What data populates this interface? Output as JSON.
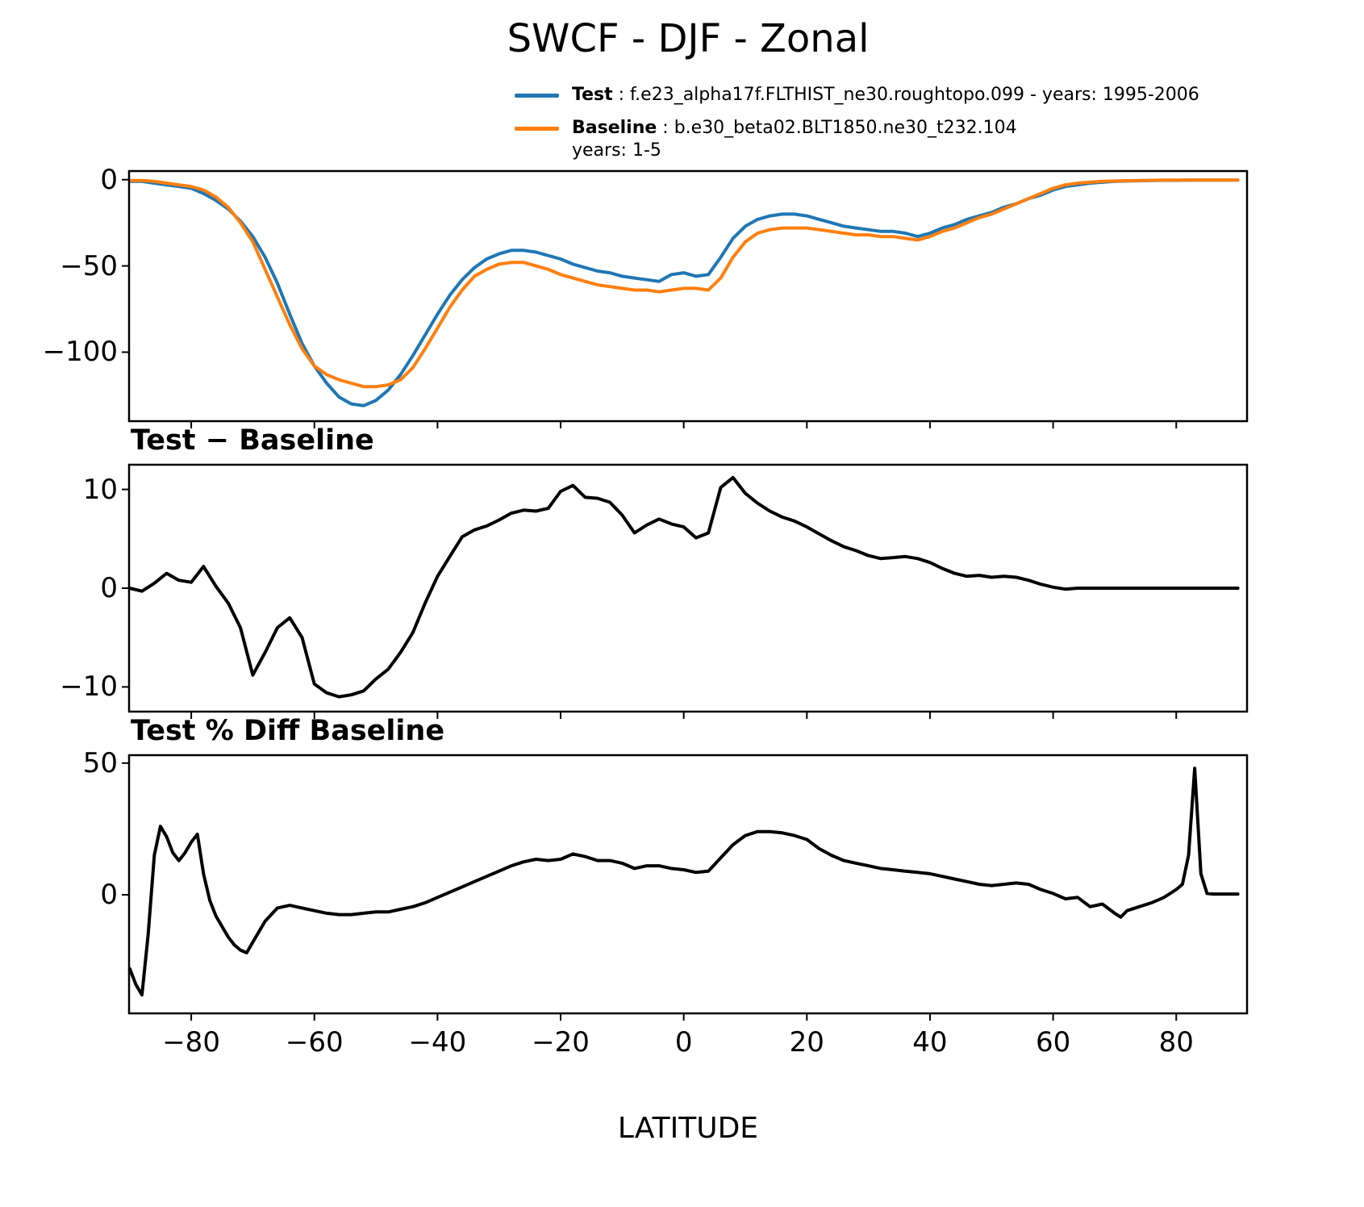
{
  "title": "SWCF - DJF - Zonal",
  "xlabel": "LATITUDE",
  "legend": {
    "test_label": "Test",
    "test_desc": " : f.e23_alpha17f.FLTHIST_ne30.roughtopo.099 - years: 1995-2006",
    "baseline_label": "Baseline",
    "baseline_desc": " : b.e30_beta02.BLT1850.ne30_t232.104",
    "baseline_years": "years: 1-5",
    "test_color": "#1f77b4",
    "baseline_color": "#ff7f0e"
  },
  "chart_data": [
    {
      "name": "zonal-mean",
      "type": "line",
      "title": "",
      "xlabel": "LATITUDE",
      "xlim": [
        -90.1,
        91.5
      ],
      "ylim": [
        -140,
        5
      ],
      "xticks": [
        -80,
        -60,
        -40,
        -20,
        0,
        20,
        40,
        60,
        80
      ],
      "yticks": [
        0,
        -50,
        -100
      ],
      "show_xtick_labels": false,
      "grid": false,
      "x": [
        -90,
        -88,
        -86,
        -84,
        -82,
        -80,
        -78,
        -76,
        -74,
        -72,
        -70,
        -68,
        -66,
        -64,
        -62,
        -60,
        -58,
        -56,
        -54,
        -52,
        -50,
        -48,
        -46,
        -44,
        -42,
        -40,
        -38,
        -36,
        -34,
        -32,
        -30,
        -28,
        -26,
        -24,
        -22,
        -20,
        -18,
        -16,
        -14,
        -12,
        -10,
        -8,
        -6,
        -4,
        -2,
        0,
        2,
        4,
        6,
        8,
        10,
        12,
        14,
        16,
        18,
        20,
        22,
        24,
        26,
        28,
        30,
        32,
        34,
        36,
        38,
        40,
        42,
        44,
        46,
        48,
        50,
        52,
        54,
        56,
        58,
        60,
        62,
        64,
        66,
        68,
        70,
        72,
        74,
        76,
        78,
        80,
        82,
        84,
        86,
        88,
        90
      ],
      "series": [
        {
          "name": "Test",
          "color": "#1f77b4",
          "width": 4,
          "values": [
            -1,
            -1,
            -2,
            -3,
            -4,
            -5,
            -8,
            -12,
            -17,
            -24,
            -33,
            -45,
            -60,
            -78,
            -95,
            -108,
            -118,
            -126,
            -130,
            -131,
            -128,
            -122,
            -113,
            -102,
            -90,
            -78,
            -67,
            -58,
            -51,
            -46,
            -43,
            -41,
            -41,
            -42,
            -44,
            -46,
            -49,
            -51,
            -53,
            -54,
            -56,
            -57,
            -58,
            -59,
            -55,
            -54,
            -56,
            -55,
            -45,
            -34,
            -27,
            -23,
            -21,
            -20,
            -20,
            -21,
            -23,
            -25,
            -27,
            -28,
            -29,
            -30,
            -30,
            -31,
            -33,
            -31,
            -28,
            -26,
            -23,
            -21,
            -19,
            -16,
            -14,
            -11,
            -9,
            -6,
            -4,
            -3,
            -2,
            -1.5,
            -1,
            -0.8,
            -0.6,
            -0.5,
            -0.4,
            -0.4,
            -0.3,
            -0.3,
            -0.3,
            -0.3,
            -0.3
          ]
        },
        {
          "name": "Baseline",
          "color": "#ff7f0e",
          "width": 4,
          "values": [
            -0.5,
            -0.5,
            -1,
            -2,
            -3,
            -4,
            -6,
            -10,
            -16,
            -25,
            -36,
            -52,
            -68,
            -84,
            -98,
            -108,
            -113,
            -116,
            -118,
            -120,
            -120,
            -119,
            -116,
            -109,
            -98,
            -86,
            -74,
            -64,
            -56,
            -52,
            -49,
            -48,
            -48,
            -50,
            -52,
            -55,
            -57,
            -59,
            -61,
            -62,
            -63,
            -64,
            -64,
            -65,
            -64,
            -63,
            -63,
            -64,
            -57,
            -45,
            -36,
            -31,
            -29,
            -28,
            -28,
            -28,
            -29,
            -30,
            -31,
            -32,
            -32,
            -33,
            -33,
            -34,
            -35,
            -33,
            -30,
            -28,
            -25,
            -22,
            -20,
            -17,
            -14,
            -11,
            -8,
            -5,
            -3,
            -2,
            -1.5,
            -1,
            -0.8,
            -0.6,
            -0.5,
            -0.4,
            -0.3,
            -0.3,
            -0.3,
            -0.2,
            -0.2,
            -0.2,
            -0.2
          ]
        }
      ]
    },
    {
      "name": "difference",
      "type": "line",
      "title": "Test − Baseline",
      "xlim": [
        -90.1,
        91.5
      ],
      "ylim": [
        -12.5,
        12.5
      ],
      "xticks": [
        -80,
        -60,
        -40,
        -20,
        0,
        20,
        40,
        60,
        80
      ],
      "yticks": [
        10,
        0,
        -10
      ],
      "show_xtick_labels": false,
      "grid": false,
      "x": [
        -90,
        -88,
        -86,
        -84,
        -82,
        -80,
        -78,
        -76,
        -74,
        -72,
        -70,
        -68,
        -66,
        -64,
        -62,
        -60,
        -58,
        -56,
        -54,
        -52,
        -50,
        -48,
        -46,
        -44,
        -42,
        -40,
        -38,
        -36,
        -34,
        -32,
        -30,
        -28,
        -26,
        -24,
        -22,
        -20,
        -18,
        -16,
        -14,
        -12,
        -10,
        -8,
        -6,
        -4,
        -2,
        0,
        2,
        4,
        6,
        8,
        10,
        12,
        14,
        16,
        18,
        20,
        22,
        24,
        26,
        28,
        30,
        32,
        34,
        36,
        38,
        40,
        42,
        44,
        46,
        48,
        50,
        52,
        54,
        56,
        58,
        60,
        62,
        64,
        66,
        68,
        70,
        72,
        74,
        76,
        78,
        80,
        82,
        84,
        86,
        88,
        90
      ],
      "series": [
        {
          "name": "Test-minus-Baseline",
          "color": "#000000",
          "width": 4,
          "values": [
            0,
            -0.3,
            0.5,
            1.5,
            0.8,
            0.6,
            2.2,
            0.2,
            -1.5,
            -4,
            -8.8,
            -6.5,
            -4,
            -3,
            -5,
            -9.7,
            -10.6,
            -11,
            -10.8,
            -10.4,
            -9.2,
            -8.2,
            -6.5,
            -4.5,
            -1.5,
            1.2,
            3.2,
            5.2,
            5.9,
            6.3,
            6.9,
            7.6,
            7.9,
            7.8,
            8.1,
            9.8,
            10.4,
            9.2,
            9.1,
            8.7,
            7.4,
            5.6,
            6.4,
            7,
            6.5,
            6.2,
            5.1,
            5.6,
            10.2,
            11.2,
            9.6,
            8.6,
            7.8,
            7.2,
            6.8,
            6.2,
            5.5,
            4.8,
            4.2,
            3.8,
            3.3,
            3,
            3.1,
            3.2,
            3,
            2.6,
            2,
            1.5,
            1.2,
            1.3,
            1.1,
            1.2,
            1.1,
            0.8,
            0.4,
            0.1,
            -0.1,
            0,
            0,
            0,
            0,
            0,
            0,
            0,
            0,
            0,
            0,
            0,
            0,
            0,
            0
          ]
        }
      ]
    },
    {
      "name": "percent-difference",
      "type": "line",
      "title": "Test % Diff Baseline",
      "xlim": [
        -90.1,
        91.5
      ],
      "ylim": [
        -45,
        53
      ],
      "xticks": [
        -80,
        -60,
        -40,
        -20,
        0,
        20,
        40,
        60,
        80
      ],
      "yticks": [
        50,
        0
      ],
      "show_xtick_labels": true,
      "grid": false,
      "x": [
        -90,
        -89,
        -88,
        -87,
        -86,
        -85,
        -84,
        -83,
        -82,
        -81,
        -80,
        -79,
        -78,
        -77,
        -76,
        -75,
        -74,
        -73,
        -72,
        -71,
        -70,
        -68,
        -66,
        -64,
        -62,
        -60,
        -58,
        -56,
        -54,
        -52,
        -50,
        -48,
        -46,
        -44,
        -42,
        -40,
        -38,
        -36,
        -34,
        -32,
        -30,
        -28,
        -26,
        -24,
        -22,
        -20,
        -18,
        -16,
        -14,
        -12,
        -10,
        -8,
        -6,
        -4,
        -2,
        0,
        2,
        4,
        6,
        8,
        10,
        12,
        14,
        16,
        18,
        20,
        22,
        24,
        26,
        28,
        30,
        32,
        34,
        36,
        38,
        40,
        42,
        44,
        46,
        48,
        50,
        52,
        54,
        56,
        58,
        60,
        62,
        64,
        66,
        68,
        70,
        71,
        72,
        74,
        76,
        78,
        80,
        81,
        82,
        83,
        84,
        85,
        86,
        88,
        90
      ],
      "series": [
        {
          "name": "Test-pct-diff-Baseline",
          "color": "#000000",
          "width": 4,
          "values": [
            -28,
            -34,
            -38,
            -15,
            15,
            26,
            22,
            16,
            13,
            16,
            20,
            23,
            8,
            -2,
            -8,
            -12,
            -16,
            -19,
            -21,
            -22,
            -18,
            -10,
            -5,
            -4,
            -5,
            -6,
            -7,
            -7.5,
            -7.5,
            -7,
            -6.5,
            -6.5,
            -5.5,
            -4.5,
            -3,
            -1,
            1,
            3,
            5,
            7,
            9,
            11,
            12.5,
            13.5,
            13,
            13.5,
            15.5,
            14.5,
            13,
            13,
            12,
            10,
            11,
            11,
            10,
            9.5,
            8.5,
            9,
            14,
            19,
            22.5,
            24,
            24,
            23.5,
            22.5,
            21,
            17.5,
            15,
            13,
            12,
            11,
            10,
            9.5,
            9,
            8.5,
            8,
            7,
            6,
            5,
            4,
            3.5,
            4,
            4.5,
            4,
            2,
            0.5,
            -1.5,
            -1,
            -4.5,
            -3.5,
            -7,
            -8.5,
            -6,
            -4.5,
            -3,
            -1,
            2,
            4,
            15,
            48,
            8,
            0.5,
            0.3,
            0.3,
            0.3
          ]
        }
      ]
    }
  ]
}
